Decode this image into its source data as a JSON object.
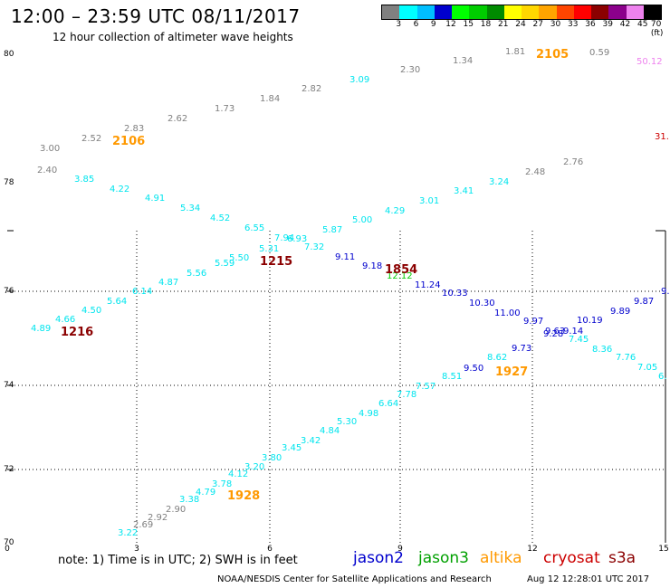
{
  "header": {
    "title": "12:00 – 23:59 UTC 08/11/2017",
    "subtitle": "12 hour collection of altimeter wave heights"
  },
  "colorbar": {
    "labels": [
      "3",
      "6",
      "9",
      "12",
      "15",
      "18",
      "21",
      "24",
      "27",
      "30",
      "33",
      "36",
      "39",
      "42",
      "45",
      "70 (ft)"
    ],
    "colors": [
      "#808080",
      "#00ffff",
      "#00bfff",
      "#0000cd",
      "#00ff00",
      "#00cd00",
      "#008b00",
      "#ffff00",
      "#ffd700",
      "#ffa500",
      "#ff4500",
      "#ff0000",
      "#8b0000",
      "#8b008b",
      "#ee82ee",
      "#000000"
    ]
  },
  "axes": {
    "x_ticks": [
      "0",
      "3",
      "6",
      "9",
      "12",
      "15"
    ],
    "y_ticks": [
      "70",
      "72",
      "74",
      "76",
      "78",
      "80"
    ]
  },
  "tracks": [
    {
      "color": "#808080",
      "labels": [
        "3.00",
        "2.52",
        "2.83",
        "2.62",
        "1.73",
        "1.84",
        "2.82",
        "2.30",
        "1.34",
        "1.81",
        "0.59"
      ]
    },
    {
      "color": "#808080",
      "labels": [
        "2.40",
        "2.48",
        "2.76",
        "2.69",
        "2.92",
        "2.90"
      ]
    },
    {
      "color": "#00e5ee",
      "labels": [
        "3.85",
        "4.22",
        "4.91",
        "5.34",
        "4.52",
        "6.55",
        "5.31",
        "5.87",
        "5.00",
        "4.29",
        "3.01",
        "3.41",
        "3.24",
        "3.09"
      ]
    },
    {
      "color": "#00e5ee",
      "labels": [
        "4.89",
        "4.66",
        "4.50",
        "5.64",
        "6.14",
        "4.87",
        "5.56",
        "5.59",
        "5.50",
        "7.32",
        "7.94",
        "6.93"
      ]
    },
    {
      "color": "#0000cd",
      "labels": [
        "9.11",
        "9.18",
        "11.24",
        "10.33",
        "10.30",
        "11.00",
        "9.97",
        "9.28",
        "9.63",
        "9.14",
        "10.19",
        "9.89",
        "9.87",
        "9.73",
        "9.50",
        "9."
      ]
    },
    {
      "color": "#00e5ee",
      "labels": [
        "3.22",
        "3.38",
        "4.79",
        "3.78",
        "4.12",
        "3.20",
        "3.80",
        "3.45",
        "3.42",
        "4.84",
        "5.30",
        "4.98",
        "6.64",
        "7.78",
        "7.57",
        "8.51",
        "8.62",
        "7.45",
        "8.36",
        "7.76",
        "7.05",
        "6."
      ]
    },
    {
      "color": "#00cd00",
      "labels": [
        "12.12"
      ]
    },
    {
      "color": "#ee82ee",
      "labels": [
        "50.12"
      ]
    },
    {
      "color": "#cc0000",
      "labels": [
        "31."
      ]
    }
  ],
  "times": [
    {
      "label": "2106",
      "color": "#ff9900"
    },
    {
      "label": "2105",
      "color": "#ff9900"
    },
    {
      "label": "1215",
      "color": "#8b0000"
    },
    {
      "label": "1854",
      "color": "#8b0000"
    },
    {
      "label": "1216",
      "color": "#8b0000"
    },
    {
      "label": "1927",
      "color": "#ff9900"
    },
    {
      "label": "1928",
      "color": "#ff9900"
    }
  ],
  "note": "note:  1) Time is in UTC;  2) SWH is in feet",
  "satellites": [
    {
      "name": "jason2",
      "color": "#0000cd"
    },
    {
      "name": "jason3",
      "color": "#00a000"
    },
    {
      "name": "altika",
      "color": "#ff9900"
    },
    {
      "name": "cryosat",
      "color": "#cc0000"
    },
    {
      "name": "s3a",
      "color": "#8b0000"
    }
  ],
  "credit": "NOAA/NESDIS Center for Satellite Applications and Research",
  "timestamp": "Aug 12 12:28:01 UTC 2017"
}
